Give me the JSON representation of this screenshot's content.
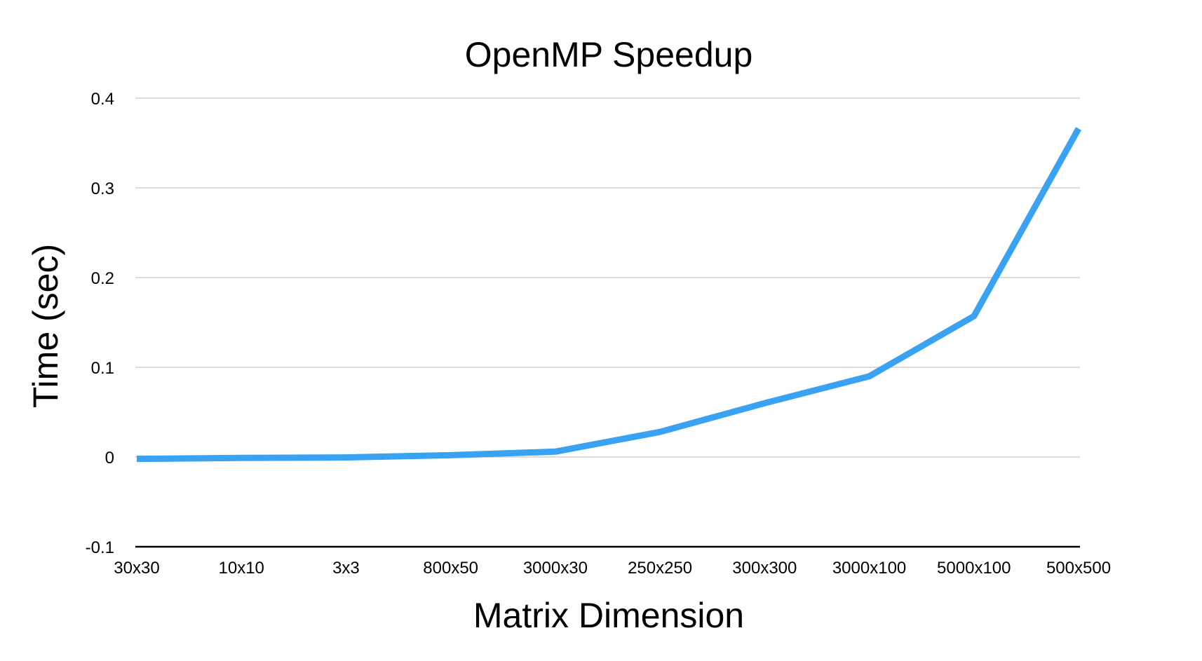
{
  "chart_data": {
    "type": "line",
    "title": "OpenMP Speedup",
    "xlabel": "Matrix Dimension",
    "ylabel": "Time (sec)",
    "categories": [
      "30x30",
      "10x10",
      "3x3",
      "800x50",
      "3000x30",
      "250x250",
      "300x300",
      "3000x100",
      "5000x100",
      "500x500"
    ],
    "series": [
      {
        "color": "#39a2f3",
        "values": [
          -0.002,
          -0.001,
          -0.0005,
          0.002,
          0.006,
          0.028,
          0.06,
          0.09,
          0.157,
          0.366
        ]
      }
    ],
    "ylim": [
      -0.1,
      0.4
    ],
    "yticks": [
      {
        "value": 0.4,
        "label": "0.4"
      },
      {
        "value": 0.3,
        "label": "0.3"
      },
      {
        "value": 0.2,
        "label": "0.2"
      },
      {
        "value": 0.1,
        "label": "0.1"
      },
      {
        "value": 0,
        "label": "0"
      },
      {
        "value": -0.1,
        "label": "-0.1"
      }
    ],
    "grid": true,
    "legend": "none"
  }
}
